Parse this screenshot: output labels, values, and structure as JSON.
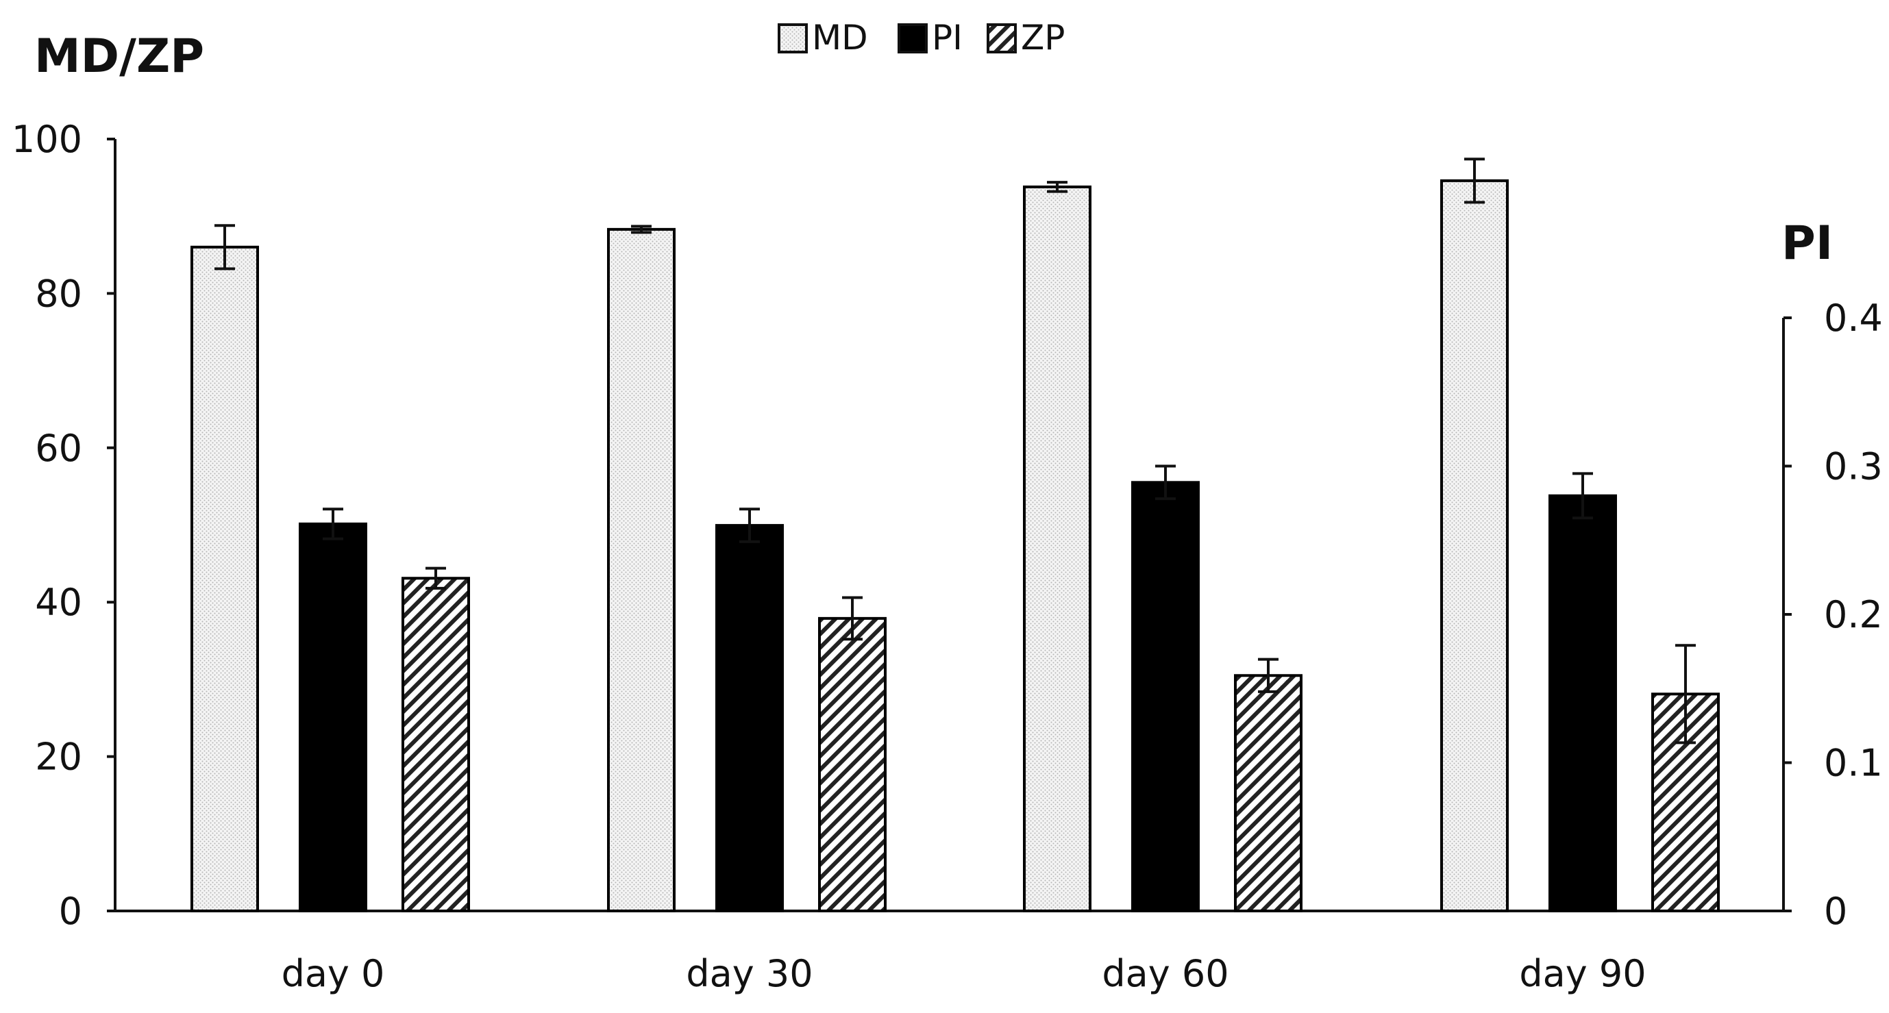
{
  "chart_data": {
    "type": "bar",
    "categories": [
      "day 0",
      "day 30",
      "day 60",
      "day 90"
    ],
    "left_axis": {
      "title": "MD/ZP",
      "range": [
        0,
        100
      ],
      "ticks": [
        0,
        20,
        40,
        60,
        80,
        100
      ]
    },
    "right_axis": {
      "title": "PI",
      "range": [
        0,
        0.4
      ],
      "ticks": [
        "0",
        "0.1",
        "0.2",
        "0.3",
        "0.4"
      ]
    },
    "legend_position": "top-center",
    "series": [
      {
        "name": "MD",
        "axis": "left",
        "pattern": "dots",
        "values": [
          86,
          88.3,
          93.8,
          94.6
        ],
        "errors": [
          2.8,
          0.4,
          0.6,
          2.8
        ]
      },
      {
        "name": "PI",
        "axis": "right",
        "pattern": "solid",
        "values": [
          0.261,
          0.26,
          0.289,
          0.28
        ],
        "errors": [
          0.01,
          0.011,
          0.011,
          0.015
        ]
      },
      {
        "name": "ZP",
        "axis": "left",
        "pattern": "hatch",
        "values": [
          43.1,
          37.9,
          30.5,
          28.1
        ],
        "errors": [
          1.3,
          2.7,
          2.1,
          6.3
        ]
      }
    ]
  }
}
